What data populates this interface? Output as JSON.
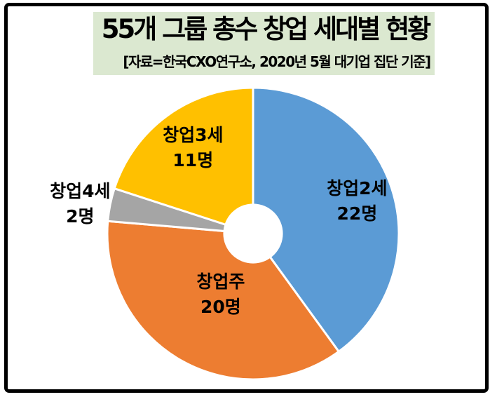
{
  "title": "55개 그룹 총수 창업 세대별 현황",
  "subtitle": "[자료=한국CXO연구소, 2020년 5월 대기업 집단 기준]",
  "title_band_color": "#dbe8d0",
  "chart_data": {
    "type": "pie",
    "title": "55개 그룹 총수 창업 세대별 현황",
    "total": 55,
    "donut_hole_ratio": 0.2,
    "start_angle_deg": 0,
    "legend_position": "none",
    "slices": [
      {
        "label": "창업2세",
        "value": 22,
        "value_label": "22명",
        "color": "#5B9BD5",
        "label_placement": "inside",
        "label_radius_ratio": 0.75,
        "label_offset": [
          0,
          0
        ]
      },
      {
        "label": "창업주",
        "value": 20,
        "value_label": "20명",
        "color": "#ED7D31",
        "label_placement": "inside",
        "label_radius_ratio": 0.47,
        "label_offset": [
          2,
          0
        ]
      },
      {
        "label": "창업4세",
        "value": 2,
        "value_label": "2명",
        "color": "#A5A5A5",
        "label_placement": "outside",
        "label_radius_ratio": 1.21,
        "label_offset": [
          0,
          6
        ]
      },
      {
        "label": "창업3세",
        "value": 11,
        "value_label": "11명",
        "color": "#FFC000",
        "label_placement": "inside",
        "label_radius_ratio": 0.66,
        "label_offset": [
          -5,
          -13
        ]
      }
    ]
  }
}
